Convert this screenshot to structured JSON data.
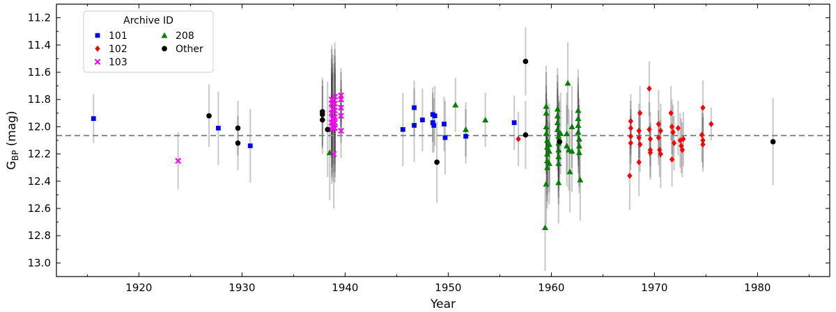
{
  "chart_data": {
    "type": "scatter",
    "xlabel": "Year",
    "ylabel": "G_BP (mag)",
    "ylabel_main": "G",
    "ylabel_sub": "BP",
    "ylabel_unit": " (mag)",
    "xlim": [
      1912,
      1987
    ],
    "ylim": [
      13.1,
      11.1
    ],
    "y_inverted": true,
    "x_ticks": [
      1920,
      1930,
      1940,
      1950,
      1960,
      1970,
      1980
    ],
    "y_ticks": [
      11.2,
      11.4,
      11.6,
      11.8,
      12.0,
      12.2,
      12.4,
      12.6,
      12.8,
      13.0
    ],
    "reference_line": 12.065,
    "legend": {
      "title": "Archive ID",
      "placement": "top-left",
      "entries": [
        "101",
        "102",
        "103",
        "208",
        "Other"
      ]
    },
    "series": [
      {
        "name": "101",
        "color": "#0000ff",
        "marker": "square",
        "points": [
          [
            1915.6,
            11.94,
            0.18
          ],
          [
            1927.7,
            12.01,
            0.27
          ],
          [
            1930.8,
            12.14,
            0.27
          ],
          [
            1945.6,
            12.02,
            0.27
          ],
          [
            1946.7,
            11.86,
            0.2
          ],
          [
            1946.7,
            11.99,
            0.27
          ],
          [
            1947.5,
            11.95,
            0.23
          ],
          [
            1948.5,
            11.91,
            0.2
          ],
          [
            1948.6,
            11.99,
            0.2
          ],
          [
            1948.7,
            11.92,
            0.22
          ],
          [
            1948.5,
            11.97,
            0.22
          ],
          [
            1949.6,
            11.98,
            0.2
          ],
          [
            1949.7,
            12.08,
            0.27
          ],
          [
            1951.7,
            12.07,
            0.2
          ],
          [
            1956.4,
            11.97,
            0.2
          ]
        ]
      },
      {
        "name": "102",
        "color": "#ff0000",
        "marker": "diamond",
        "points": [
          [
            1956.8,
            12.09,
            0.2
          ],
          [
            1967.6,
            12.36,
            0.25
          ],
          [
            1967.7,
            11.96,
            0.2
          ],
          [
            1967.7,
            12.01,
            0.2
          ],
          [
            1967.7,
            12.07,
            0.2
          ],
          [
            1967.7,
            12.12,
            0.2
          ],
          [
            1968.5,
            12.03,
            0.2
          ],
          [
            1968.5,
            12.08,
            0.2
          ],
          [
            1968.6,
            11.9,
            0.2
          ],
          [
            1968.6,
            12.13,
            0.2
          ],
          [
            1968.5,
            12.26,
            0.25
          ],
          [
            1969.5,
            11.72,
            0.2
          ],
          [
            1969.5,
            12.02,
            0.2
          ],
          [
            1969.6,
            12.09,
            0.2
          ],
          [
            1969.6,
            12.17,
            0.2
          ],
          [
            1969.6,
            12.19,
            0.2
          ],
          [
            1970.4,
            11.98,
            0.25
          ],
          [
            1970.6,
            12.03,
            0.2
          ],
          [
            1970.4,
            12.08,
            0.2
          ],
          [
            1970.5,
            12.17,
            0.2
          ],
          [
            1970.6,
            12.2,
            0.25
          ],
          [
            1971.6,
            11.9,
            0.2
          ],
          [
            1971.7,
            12.0,
            0.2
          ],
          [
            1971.8,
            12.04,
            0.2
          ],
          [
            1971.9,
            12.12,
            0.2
          ],
          [
            1971.7,
            12.24,
            0.2
          ],
          [
            1972.3,
            12.01,
            0.2
          ],
          [
            1972.5,
            12.1,
            0.2
          ],
          [
            1972.6,
            12.14,
            0.2
          ],
          [
            1972.8,
            12.09,
            0.2
          ],
          [
            1972.7,
            12.17,
            0.2
          ],
          [
            1974.7,
            11.86,
            0.2
          ],
          [
            1974.6,
            12.06,
            0.2
          ],
          [
            1974.7,
            12.1,
            0.2
          ],
          [
            1974.7,
            12.13,
            0.2
          ],
          [
            1975.5,
            11.98,
            0.12
          ]
        ]
      },
      {
        "name": "103",
        "color": "#ff00ff",
        "marker": "x",
        "points": [
          [
            1923.8,
            12.25,
            0.21
          ],
          [
            1938.7,
            11.8,
            0.4
          ],
          [
            1938.7,
            11.83,
            0.4
          ],
          [
            1938.8,
            11.87,
            0.4
          ],
          [
            1938.7,
            11.9,
            0.4
          ],
          [
            1938.8,
            11.94,
            0.4
          ],
          [
            1938.7,
            11.97,
            0.4
          ],
          [
            1938.8,
            12.0,
            0.4
          ],
          [
            1938.7,
            12.02,
            0.4
          ],
          [
            1939.0,
            11.78,
            0.4
          ],
          [
            1939.0,
            11.83,
            0.4
          ],
          [
            1939.0,
            11.88,
            0.4
          ],
          [
            1939.0,
            11.93,
            0.4
          ],
          [
            1939.0,
            11.97,
            0.4
          ],
          [
            1939.0,
            12.01,
            0.4
          ],
          [
            1938.9,
            12.2,
            0.4
          ],
          [
            1939.6,
            11.77,
            0.2
          ],
          [
            1939.6,
            11.8,
            0.2
          ],
          [
            1939.6,
            11.86,
            0.2
          ],
          [
            1939.6,
            11.92,
            0.2
          ],
          [
            1939.6,
            12.03,
            0.2
          ]
        ]
      },
      {
        "name": "208",
        "color": "#008000",
        "marker": "triangle",
        "points": [
          [
            1938.5,
            12.19,
            0.35
          ],
          [
            1950.7,
            11.84,
            0.2
          ],
          [
            1951.7,
            12.02,
            0.2
          ],
          [
            1953.6,
            11.95,
            0.2
          ],
          [
            1959.5,
            11.85,
            0.3
          ],
          [
            1959.5,
            11.9,
            0.3
          ],
          [
            1959.5,
            12.0,
            0.3
          ],
          [
            1959.5,
            12.05,
            0.3
          ],
          [
            1959.6,
            12.1,
            0.3
          ],
          [
            1959.6,
            12.15,
            0.3
          ],
          [
            1959.6,
            12.2,
            0.3
          ],
          [
            1959.6,
            12.25,
            0.3
          ],
          [
            1959.6,
            12.3,
            0.3
          ],
          [
            1959.5,
            12.42,
            0.3
          ],
          [
            1959.4,
            12.74,
            0.32
          ],
          [
            1959.8,
            12.13,
            0.3
          ],
          [
            1959.8,
            12.18,
            0.3
          ],
          [
            1959.8,
            12.27,
            0.3
          ],
          [
            1960.6,
            11.87,
            0.3
          ],
          [
            1960.6,
            11.92,
            0.3
          ],
          [
            1960.6,
            11.97,
            0.3
          ],
          [
            1960.6,
            12.02,
            0.3
          ],
          [
            1960.7,
            12.07,
            0.3
          ],
          [
            1960.7,
            12.12,
            0.3
          ],
          [
            1960.7,
            12.17,
            0.3
          ],
          [
            1960.7,
            12.22,
            0.3
          ],
          [
            1960.7,
            12.27,
            0.3
          ],
          [
            1960.7,
            12.41,
            0.3
          ],
          [
            1960.9,
            12.05,
            0.3
          ],
          [
            1961.5,
            12.05,
            0.3
          ],
          [
            1961.5,
            12.14,
            0.3
          ],
          [
            1961.6,
            11.68,
            0.3
          ],
          [
            1961.7,
            12.17,
            0.3
          ],
          [
            1961.8,
            12.33,
            0.3
          ],
          [
            1962.0,
            12.0,
            0.3
          ],
          [
            1962.0,
            12.18,
            0.3
          ],
          [
            1962.6,
            11.88,
            0.3
          ],
          [
            1962.6,
            11.94,
            0.3
          ],
          [
            1962.6,
            11.99,
            0.3
          ],
          [
            1962.6,
            12.04,
            0.3
          ],
          [
            1962.7,
            12.09,
            0.3
          ],
          [
            1962.7,
            12.14,
            0.3
          ],
          [
            1962.7,
            12.19,
            0.3
          ],
          [
            1962.8,
            12.39,
            0.3
          ]
        ]
      },
      {
        "name": "Other",
        "color": "#000000",
        "marker": "circle",
        "points": [
          [
            1926.8,
            11.92,
            0.23
          ],
          [
            1929.6,
            12.01,
            0.2
          ],
          [
            1929.6,
            12.12,
            0.2
          ],
          [
            1937.8,
            11.89,
            0.25
          ],
          [
            1937.8,
            11.91,
            0.25
          ],
          [
            1937.8,
            11.95,
            0.25
          ],
          [
            1938.3,
            12.02,
            0.35
          ],
          [
            1948.9,
            12.26,
            0.3
          ],
          [
            1957.5,
            11.52,
            0.25
          ],
          [
            1957.5,
            12.06,
            0.25
          ],
          [
            1960.8,
            12.11,
            0.3
          ],
          [
            1981.5,
            12.11,
            0.32
          ]
        ]
      }
    ]
  }
}
